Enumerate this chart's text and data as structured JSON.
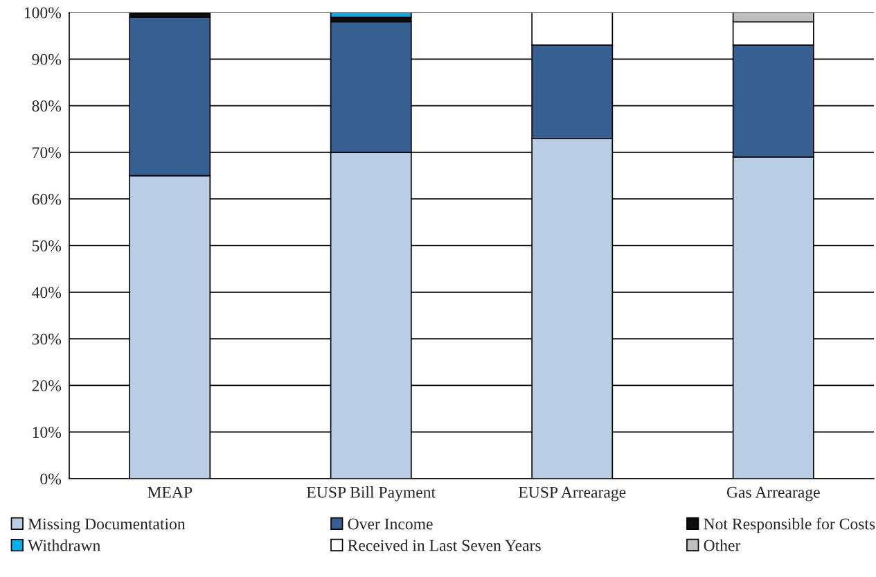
{
  "chart_data": {
    "type": "bar",
    "stacked": true,
    "categories": [
      "MEAP",
      "EUSP Bill Payment",
      "EUSP Arrearage",
      "Gas Arrearage"
    ],
    "series": [
      {
        "name": "Missing Documentation",
        "color": "#b9cde5",
        "values": [
          65,
          70,
          73,
          69
        ]
      },
      {
        "name": "Over Income",
        "color": "#376092",
        "values": [
          34,
          28,
          20,
          24
        ]
      },
      {
        "name": "Not Responsible for Costs",
        "color": "#0d0d0d",
        "values": [
          1,
          1,
          0,
          0
        ]
      },
      {
        "name": "Withdrawn",
        "color": "#00b0f0",
        "values": [
          0,
          1,
          0,
          0
        ]
      },
      {
        "name": "Received in Last Seven Years",
        "color": "#ffffff",
        "values": [
          0,
          0,
          7,
          5
        ]
      },
      {
        "name": "Other",
        "color": "#bfbfbf",
        "values": [
          0,
          0,
          0,
          2
        ]
      }
    ],
    "ylim": [
      0,
      100
    ],
    "yticks": [
      {
        "value": 0,
        "label": "0%"
      },
      {
        "value": 10,
        "label": "10%"
      },
      {
        "value": 20,
        "label": "20%"
      },
      {
        "value": 30,
        "label": "30%"
      },
      {
        "value": 40,
        "label": "40%"
      },
      {
        "value": 50,
        "label": "50%"
      },
      {
        "value": 60,
        "label": "60%"
      },
      {
        "value": 70,
        "label": "70%"
      },
      {
        "value": 80,
        "label": "80%"
      },
      {
        "value": 90,
        "label": "90%"
      },
      {
        "value": 100,
        "label": "100%"
      }
    ],
    "grid": "y",
    "legend": "bottom"
  }
}
